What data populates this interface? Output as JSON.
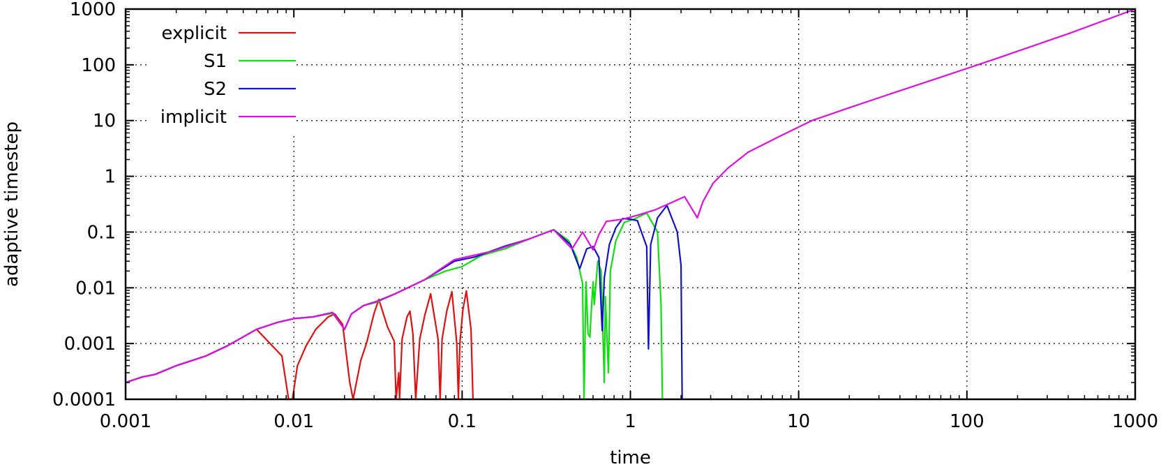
{
  "chart_data": {
    "type": "line",
    "title": "",
    "xlabel": "time",
    "ylabel": "adaptive timestep",
    "x_scale": "log",
    "y_scale": "log",
    "xlim": [
      0.001,
      1000
    ],
    "ylim": [
      0.0001,
      1000
    ],
    "grid": true,
    "legend_position": "top-left",
    "x_ticks": [
      {
        "value": 0.001,
        "label": "0.001"
      },
      {
        "value": 0.01,
        "label": "0.01"
      },
      {
        "value": 0.1,
        "label": "0.1"
      },
      {
        "value": 1,
        "label": "1"
      },
      {
        "value": 10,
        "label": "10"
      },
      {
        "value": 100,
        "label": "100"
      },
      {
        "value": 1000,
        "label": "1000"
      }
    ],
    "y_ticks": [
      {
        "value": 0.0001,
        "label": "0.0001"
      },
      {
        "value": 0.001,
        "label": "0.001"
      },
      {
        "value": 0.01,
        "label": "0.01"
      },
      {
        "value": 0.1,
        "label": "0.1"
      },
      {
        "value": 1,
        "label": "1"
      },
      {
        "value": 10,
        "label": "10"
      },
      {
        "value": 100,
        "label": "100"
      },
      {
        "value": 1000,
        "label": "1000"
      }
    ],
    "series": [
      {
        "name": "explicit",
        "color": "#dd1111",
        "points": [
          [
            0.001,
            0.0002
          ],
          [
            0.00125,
            0.00025
          ],
          [
            0.0015,
            0.00028
          ],
          [
            0.002,
            0.0004
          ],
          [
            0.003,
            0.0006
          ],
          [
            0.004,
            0.0009
          ],
          [
            0.006,
            0.0018
          ],
          [
            0.0085,
            0.0006
          ],
          [
            0.0093,
            0.0001
          ],
          [
            0.0098,
            0.0001
          ],
          [
            0.0105,
            0.0004
          ],
          [
            0.0118,
            0.0009
          ],
          [
            0.0135,
            0.0018
          ],
          [
            0.016,
            0.003
          ],
          [
            0.0175,
            0.0034
          ],
          [
            0.0195,
            0.0022
          ],
          [
            0.0215,
            0.0002
          ],
          [
            0.0225,
            0.0001
          ],
          [
            0.025,
            0.0005
          ],
          [
            0.027,
            0.001
          ],
          [
            0.03,
            0.0035
          ],
          [
            0.032,
            0.0062
          ],
          [
            0.036,
            0.002
          ],
          [
            0.0395,
            0.0011
          ],
          [
            0.0405,
            0.0001
          ],
          [
            0.042,
            0.0003
          ],
          [
            0.0425,
            0.0001
          ],
          [
            0.044,
            0.0012
          ],
          [
            0.047,
            0.003
          ],
          [
            0.049,
            0.0038
          ],
          [
            0.051,
            0.0015
          ],
          [
            0.053,
            0.0001
          ],
          [
            0.056,
            0.0012
          ],
          [
            0.06,
            0.0032
          ],
          [
            0.065,
            0.0078
          ],
          [
            0.072,
            0.0012
          ],
          [
            0.074,
            0.0001
          ],
          [
            0.076,
            0.0012
          ],
          [
            0.081,
            0.0038
          ],
          [
            0.087,
            0.0085
          ],
          [
            0.093,
            0.001
          ],
          [
            0.095,
            0.0001
          ],
          [
            0.097,
            0.001
          ],
          [
            0.101,
            0.004
          ],
          [
            0.106,
            0.0088
          ],
          [
            0.113,
            0.0018
          ],
          [
            0.116,
            0.0001
          ]
        ]
      },
      {
        "name": "S1",
        "color": "#11dd11",
        "points": [
          [
            0.001,
            0.0002
          ],
          [
            0.00125,
            0.00025
          ],
          [
            0.0015,
            0.00028
          ],
          [
            0.002,
            0.0004
          ],
          [
            0.003,
            0.0006
          ],
          [
            0.004,
            0.0009
          ],
          [
            0.006,
            0.0018
          ],
          [
            0.008,
            0.0024
          ],
          [
            0.01,
            0.0028
          ],
          [
            0.013,
            0.003
          ],
          [
            0.017,
            0.0035
          ],
          [
            0.02,
            0.0018
          ],
          [
            0.022,
            0.0034
          ],
          [
            0.026,
            0.0048
          ],
          [
            0.031,
            0.0055
          ],
          [
            0.04,
            0.0078
          ],
          [
            0.06,
            0.014
          ],
          [
            0.08,
            0.02
          ],
          [
            0.1,
            0.024
          ],
          [
            0.13,
            0.038
          ],
          [
            0.18,
            0.05
          ],
          [
            0.25,
            0.075
          ],
          [
            0.35,
            0.11
          ],
          [
            0.43,
            0.07
          ],
          [
            0.48,
            0.035
          ],
          [
            0.52,
            0.012
          ],
          [
            0.53,
            0.0001
          ],
          [
            0.545,
            0.0128
          ],
          [
            0.56,
            0.0015
          ],
          [
            0.575,
            0.0013
          ],
          [
            0.585,
            0.0035
          ],
          [
            0.6,
            0.0128
          ],
          [
            0.61,
            0.005
          ],
          [
            0.64,
            0.03
          ],
          [
            0.67,
            0.02
          ],
          [
            0.7,
            0.0002
          ],
          [
            0.71,
            0.007
          ],
          [
            0.74,
            0.0003
          ],
          [
            0.76,
            0.02
          ],
          [
            0.82,
            0.07
          ],
          [
            0.92,
            0.15
          ],
          [
            1.05,
            0.17
          ],
          [
            1.25,
            0.22
          ],
          [
            1.45,
            0.1
          ],
          [
            1.52,
            0.005
          ],
          [
            1.55,
            0.0001
          ]
        ]
      },
      {
        "name": "S2",
        "color": "#1111cc",
        "points": [
          [
            0.001,
            0.0002
          ],
          [
            0.00125,
            0.00025
          ],
          [
            0.0015,
            0.00028
          ],
          [
            0.002,
            0.0004
          ],
          [
            0.003,
            0.0006
          ],
          [
            0.004,
            0.0009
          ],
          [
            0.006,
            0.0018
          ],
          [
            0.008,
            0.0024
          ],
          [
            0.01,
            0.0028
          ],
          [
            0.013,
            0.003
          ],
          [
            0.017,
            0.0036
          ],
          [
            0.02,
            0.0018
          ],
          [
            0.022,
            0.0034
          ],
          [
            0.026,
            0.0048
          ],
          [
            0.031,
            0.0057
          ],
          [
            0.04,
            0.0078
          ],
          [
            0.06,
            0.014
          ],
          [
            0.09,
            0.03
          ],
          [
            0.12,
            0.036
          ],
          [
            0.18,
            0.056
          ],
          [
            0.25,
            0.075
          ],
          [
            0.35,
            0.11
          ],
          [
            0.44,
            0.06
          ],
          [
            0.5,
            0.022
          ],
          [
            0.55,
            0.05
          ],
          [
            0.6,
            0.055
          ],
          [
            0.65,
            0.035
          ],
          [
            0.68,
            0.0017
          ],
          [
            0.7,
            0.015
          ],
          [
            0.75,
            0.06
          ],
          [
            0.82,
            0.12
          ],
          [
            0.9,
            0.175
          ],
          [
            1.0,
            0.17
          ],
          [
            1.1,
            0.16
          ],
          [
            1.25,
            0.055
          ],
          [
            1.28,
            0.0008
          ],
          [
            1.32,
            0.06
          ],
          [
            1.45,
            0.18
          ],
          [
            1.65,
            0.3
          ],
          [
            1.9,
            0.1
          ],
          [
            2.0,
            0.025
          ],
          [
            2.03,
            0.0001
          ]
        ]
      },
      {
        "name": "implicit",
        "color": "#dd11dd",
        "points": [
          [
            0.001,
            0.0002
          ],
          [
            0.00125,
            0.00025
          ],
          [
            0.0015,
            0.00028
          ],
          [
            0.002,
            0.0004
          ],
          [
            0.003,
            0.0006
          ],
          [
            0.004,
            0.0009
          ],
          [
            0.006,
            0.0018
          ],
          [
            0.008,
            0.0024
          ],
          [
            0.01,
            0.0028
          ],
          [
            0.013,
            0.003
          ],
          [
            0.017,
            0.0036
          ],
          [
            0.02,
            0.0018
          ],
          [
            0.022,
            0.0034
          ],
          [
            0.026,
            0.0048
          ],
          [
            0.031,
            0.0057
          ],
          [
            0.04,
            0.0078
          ],
          [
            0.06,
            0.014
          ],
          [
            0.09,
            0.032
          ],
          [
            0.15,
            0.045
          ],
          [
            0.25,
            0.075
          ],
          [
            0.35,
            0.11
          ],
          [
            0.45,
            0.05
          ],
          [
            0.52,
            0.1
          ],
          [
            0.6,
            0.048
          ],
          [
            0.65,
            0.09
          ],
          [
            0.72,
            0.155
          ],
          [
            0.9,
            0.17
          ],
          [
            1.1,
            0.2
          ],
          [
            1.4,
            0.25
          ],
          [
            1.8,
            0.35
          ],
          [
            2.1,
            0.43
          ],
          [
            2.5,
            0.18
          ],
          [
            2.7,
            0.35
          ],
          [
            3.1,
            0.75
          ],
          [
            3.8,
            1.4
          ],
          [
            5,
            2.7
          ],
          [
            8,
            5.5
          ],
          [
            12,
            10
          ],
          [
            20,
            17
          ],
          [
            35,
            30
          ],
          [
            70,
            60
          ],
          [
            150,
            130
          ],
          [
            400,
            360
          ],
          [
            1000,
            1000
          ]
        ]
      }
    ]
  }
}
